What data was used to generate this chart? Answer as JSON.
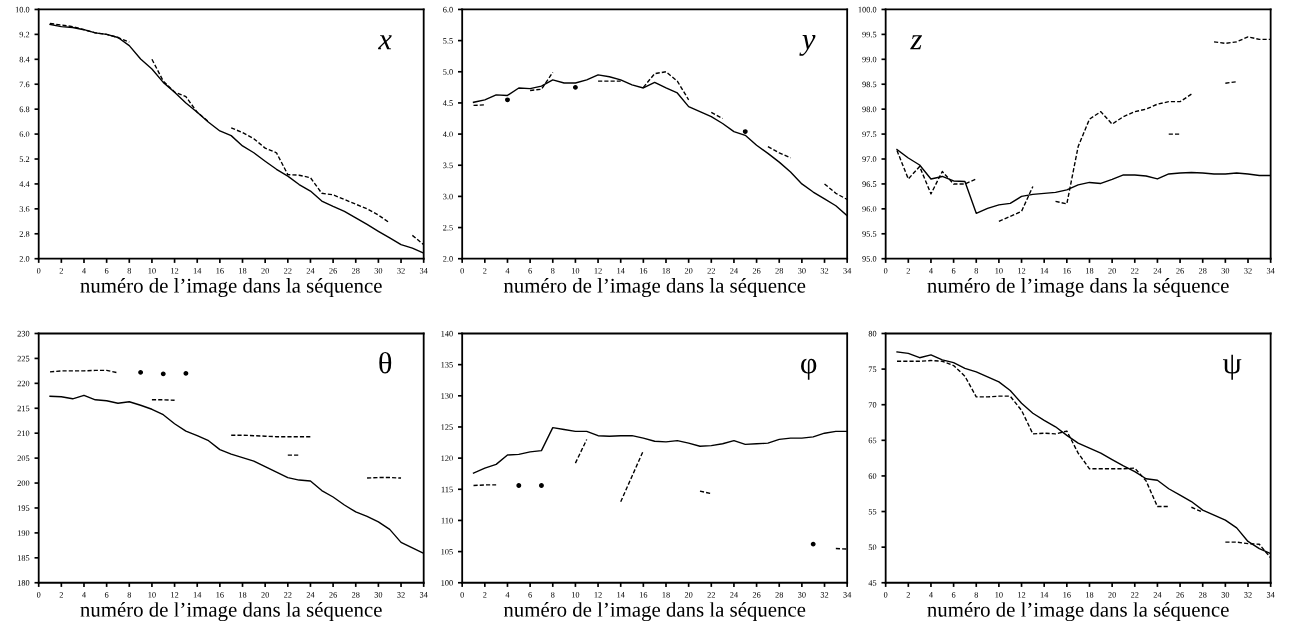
{
  "chart_data": [
    {
      "type": "line",
      "xlabel": "numéro de l’image dans la séquence",
      "annotations": [
        "x"
      ],
      "x": [
        1,
        2,
        3,
        4,
        5,
        6,
        7,
        8,
        9,
        10,
        11,
        12,
        13,
        14,
        15,
        16,
        17,
        18,
        19,
        20,
        21,
        22,
        23,
        24,
        25,
        26,
        27,
        28,
        29,
        30,
        31,
        32,
        33,
        34
      ],
      "xlim": [
        0,
        34
      ],
      "xticks": [
        0,
        2,
        4,
        6,
        8,
        10,
        12,
        14,
        16,
        18,
        20,
        22,
        24,
        26,
        28,
        30,
        32,
        34
      ],
      "ylim": [
        2.0,
        10.0
      ],
      "yticks": [
        {
          "value": 2.0,
          "label": "2.0"
        },
        2.8,
        3.6,
        4.4,
        5.2,
        {
          "value": 6.0,
          "label": "6.0"
        },
        6.8,
        7.6,
        8.4,
        9.2,
        {
          "value": 10.0,
          "label": "10.0"
        }
      ],
      "grid": false,
      "series": [
        {
          "color": "#000000",
          "line_style": "solid",
          "values": [
            9.52,
            9.45,
            9.42,
            9.35,
            9.25,
            9.2,
            9.1,
            8.84,
            8.41,
            8.09,
            7.66,
            7.34,
            7.0,
            6.7,
            6.38,
            6.1,
            5.95,
            5.62,
            5.4,
            5.13,
            4.87,
            4.65,
            4.38,
            4.17,
            3.85,
            3.68,
            3.52,
            3.31,
            3.1,
            2.88,
            2.67,
            2.45,
            2.34,
            2.18
          ]
        },
        {
          "color": "#000000",
          "line_style": "dashed",
          "values": [
            9.55,
            9.5,
            9.45,
            9.35,
            9.25,
            9.2,
            9.1,
            8.95,
            null,
            8.4,
            7.7,
            7.35,
            7.2,
            6.7,
            6.4,
            null,
            6.2,
            6.05,
            5.85,
            5.55,
            5.4,
            4.7,
            4.68,
            4.6,
            4.1,
            4.05,
            3.9,
            3.75,
            3.6,
            3.4,
            3.15,
            null,
            2.75,
            2.45
          ]
        }
      ]
    },
    {
      "type": "line",
      "xlabel": "numéro de l’image dans la séquence",
      "annotations": [
        "y"
      ],
      "x": [
        1,
        2,
        3,
        4,
        5,
        6,
        7,
        8,
        9,
        10,
        11,
        12,
        13,
        14,
        15,
        16,
        17,
        18,
        19,
        20,
        21,
        22,
        23,
        24,
        25,
        26,
        27,
        28,
        29,
        30,
        31,
        32,
        33,
        34
      ],
      "xlim": [
        0,
        34
      ],
      "xticks": [
        0,
        2,
        4,
        6,
        8,
        10,
        12,
        14,
        16,
        18,
        20,
        22,
        24,
        26,
        28,
        30,
        32,
        34
      ],
      "ylim": [
        2.0,
        6.0
      ],
      "yticks": [
        {
          "value": 2.0,
          "label": "2.0"
        },
        2.5,
        {
          "value": 3.0,
          "label": "3.0"
        },
        3.5,
        {
          "value": 4.0,
          "label": "4.0"
        },
        4.5,
        {
          "value": 5.0,
          "label": "5.0"
        },
        5.5,
        {
          "value": 6.0,
          "label": "6.0"
        }
      ],
      "grid": false,
      "series": [
        {
          "color": "#000000",
          "line_style": "solid",
          "values": [
            4.51,
            4.55,
            4.63,
            4.62,
            4.74,
            4.73,
            4.77,
            4.87,
            4.82,
            4.82,
            4.87,
            4.95,
            4.92,
            4.87,
            4.79,
            4.74,
            4.83,
            4.74,
            4.66,
            4.44,
            4.36,
            4.28,
            4.17,
            4.04,
            3.98,
            3.82,
            3.69,
            3.55,
            3.39,
            3.2,
            3.07,
            2.96,
            2.85,
            2.69
          ]
        },
        {
          "color": "#000000",
          "line_style": "dashed",
          "values": [
            4.46,
            4.47,
            null,
            4.55,
            null,
            4.7,
            4.72,
            4.99,
            null,
            4.75,
            null,
            4.85,
            4.85,
            4.85,
            null,
            4.75,
            4.97,
            5.0,
            4.85,
            4.55,
            null,
            4.35,
            4.25,
            null,
            4.04,
            null,
            3.8,
            3.7,
            3.62,
            null,
            null,
            3.2,
            3.05,
            2.95
          ]
        }
      ]
    },
    {
      "type": "line",
      "xlabel": "numéro de l’image dans la séquence",
      "annotations": [
        "z"
      ],
      "x": [
        1,
        2,
        3,
        4,
        5,
        6,
        7,
        8,
        9,
        10,
        11,
        12,
        13,
        14,
        15,
        16,
        17,
        18,
        19,
        20,
        21,
        22,
        23,
        24,
        25,
        26,
        27,
        28,
        29,
        30,
        31,
        32,
        33,
        34
      ],
      "xlim": [
        0,
        34
      ],
      "xticks": [
        0,
        2,
        4,
        6,
        8,
        10,
        12,
        14,
        16,
        18,
        20,
        22,
        24,
        26,
        28,
        30,
        32,
        34
      ],
      "ylim": [
        95.0,
        100.0
      ],
      "yticks": [
        {
          "value": 95.0,
          "label": "95.0"
        },
        95.5,
        {
          "value": 96.0,
          "label": "96.0"
        },
        96.5,
        {
          "value": 97.0,
          "label": "97.0"
        },
        97.5,
        {
          "value": 98.0,
          "label": "98.0"
        },
        98.5,
        {
          "value": 99.0,
          "label": "99.0"
        },
        99.5,
        {
          "value": 100.0,
          "label": "100.0"
        }
      ],
      "grid": false,
      "series": [
        {
          "color": "#000000",
          "line_style": "solid",
          "values": [
            97.19,
            97.02,
            96.88,
            96.6,
            96.65,
            96.56,
            96.55,
            95.91,
            96.01,
            96.08,
            96.11,
            96.25,
            96.29,
            96.31,
            96.33,
            96.38,
            96.48,
            96.53,
            96.51,
            96.59,
            96.68,
            96.68,
            96.66,
            96.6,
            96.7,
            96.72,
            96.73,
            96.72,
            96.7,
            96.7,
            96.72,
            96.7,
            96.67,
            96.67
          ]
        },
        {
          "color": "#000000",
          "line_style": "dashed",
          "values": [
            97.17,
            96.6,
            96.85,
            96.3,
            96.75,
            96.5,
            96.5,
            96.6,
            null,
            95.75,
            95.85,
            95.95,
            96.45,
            null,
            96.15,
            96.1,
            97.25,
            97.8,
            97.95,
            97.7,
            97.85,
            97.95,
            98.0,
            98.1,
            98.15,
            98.15,
            98.3,
            null,
            null,
            98.52,
            98.55,
            null,
            null,
            null
          ]
        },
        {
          "color": "#000000",
          "line_style": "dashed",
          "values": [
            null,
            null,
            null,
            null,
            null,
            null,
            null,
            null,
            null,
            null,
            null,
            null,
            null,
            null,
            null,
            null,
            null,
            null,
            null,
            null,
            null,
            null,
            null,
            null,
            97.5,
            97.5,
            null,
            null,
            99.35,
            99.32,
            99.35,
            99.45,
            99.4,
            99.4
          ]
        }
      ]
    },
    {
      "type": "line",
      "xlabel": "numéro de l’image dans la séquence",
      "annotations": [
        "θ"
      ],
      "x": [
        1,
        2,
        3,
        4,
        5,
        6,
        7,
        8,
        9,
        10,
        11,
        12,
        13,
        14,
        15,
        16,
        17,
        18,
        19,
        20,
        21,
        22,
        23,
        24,
        25,
        26,
        27,
        28,
        29,
        30,
        31,
        32,
        33,
        34
      ],
      "xlim": [
        0,
        34
      ],
      "xticks": [
        0,
        2,
        4,
        6,
        8,
        10,
        12,
        14,
        16,
        18,
        20,
        22,
        24,
        26,
        28,
        30,
        32,
        34
      ],
      "ylim": [
        180,
        230
      ],
      "yticks": [
        180,
        185,
        190,
        195,
        200,
        205,
        210,
        215,
        220,
        225,
        230
      ],
      "grid": false,
      "series": [
        {
          "color": "#000000",
          "line_style": "solid",
          "values": [
            217.4,
            217.3,
            216.9,
            217.6,
            216.7,
            216.5,
            216.0,
            216.3,
            215.6,
            214.8,
            213.7,
            211.9,
            210.4,
            209.5,
            208.5,
            206.7,
            205.8,
            205.1,
            204.4,
            203.3,
            202.2,
            201.1,
            200.6,
            200.4,
            198.5,
            197.2,
            195.6,
            194.2,
            193.3,
            192.2,
            190.7,
            188.1,
            187.0,
            185.9
          ]
        },
        {
          "color": "#000000",
          "line_style": "dashed",
          "values": [
            222.3,
            222.5,
            222.5,
            222.5,
            222.6,
            222.6,
            222.1,
            null,
            222.2,
            null,
            221.9,
            null,
            222.0,
            null,
            null,
            null,
            209.6,
            209.6,
            209.5,
            209.4,
            209.3,
            209.3,
            209.3,
            209.3,
            null,
            null,
            null,
            null,
            201.0,
            201.1,
            201.1,
            201.0,
            null,
            null
          ]
        },
        {
          "color": "#000000",
          "line_style": "dashed",
          "values": [
            null,
            null,
            null,
            null,
            null,
            null,
            null,
            null,
            null,
            216.7,
            216.7,
            216.6,
            null,
            null,
            null,
            null,
            null,
            null,
            null,
            null,
            null,
            205.6,
            205.6,
            null,
            null,
            null,
            null,
            null,
            null,
            null,
            null,
            null,
            null,
            null
          ]
        }
      ]
    },
    {
      "type": "line",
      "xlabel": "numéro de l’image dans la séquence",
      "annotations": [
        "φ"
      ],
      "x": [
        1,
        2,
        3,
        4,
        5,
        6,
        7,
        8,
        9,
        10,
        11,
        12,
        13,
        14,
        15,
        16,
        17,
        18,
        19,
        20,
        21,
        22,
        23,
        24,
        25,
        26,
        27,
        28,
        29,
        30,
        31,
        32,
        33,
        34
      ],
      "xlim": [
        0,
        34
      ],
      "xticks": [
        0,
        2,
        4,
        6,
        8,
        10,
        12,
        14,
        16,
        18,
        20,
        22,
        24,
        26,
        28,
        30,
        32,
        34
      ],
      "ylim": [
        100,
        140
      ],
      "yticks": [
        100,
        105,
        110,
        115,
        120,
        125,
        130,
        135,
        140
      ],
      "grid": false,
      "series": [
        {
          "color": "#000000",
          "line_style": "solid",
          "values": [
            117.6,
            118.4,
            119.0,
            120.5,
            120.6,
            121.0,
            121.2,
            124.9,
            124.6,
            124.3,
            124.3,
            123.6,
            123.5,
            123.6,
            123.6,
            123.2,
            122.7,
            122.6,
            122.8,
            122.4,
            121.9,
            122.0,
            122.3,
            122.8,
            122.2,
            122.3,
            122.4,
            123.0,
            123.2,
            123.2,
            123.4,
            124.0,
            124.3,
            124.3
          ]
        },
        {
          "color": "#000000",
          "line_style": "dashed",
          "values": [
            115.6,
            115.7,
            115.7,
            null,
            115.6,
            null,
            115.6,
            null,
            null,
            119.2,
            123.0,
            null,
            null,
            113.0,
            117.1,
            121.2,
            null,
            null,
            null,
            null,
            114.7,
            114.3,
            null,
            null,
            null,
            null,
            null,
            null,
            null,
            null,
            106.2,
            null,
            105.5,
            105.4
          ]
        }
      ]
    },
    {
      "type": "line",
      "xlabel": "numéro de l’image dans la séquence",
      "annotations": [
        "ψ"
      ],
      "x": [
        1,
        2,
        3,
        4,
        5,
        6,
        7,
        8,
        9,
        10,
        11,
        12,
        13,
        14,
        15,
        16,
        17,
        18,
        19,
        20,
        21,
        22,
        23,
        24,
        25,
        26,
        27,
        28,
        29,
        30,
        31,
        32,
        33,
        34
      ],
      "xlim": [
        0,
        34
      ],
      "xticks": [
        0,
        2,
        4,
        6,
        8,
        10,
        12,
        14,
        16,
        18,
        20,
        22,
        24,
        26,
        28,
        30,
        32,
        34
      ],
      "ylim": [
        45,
        80
      ],
      "yticks": [
        45,
        50,
        55,
        60,
        65,
        70,
        75,
        80
      ],
      "grid": false,
      "series": [
        {
          "color": "#000000",
          "line_style": "solid",
          "values": [
            77.4,
            77.2,
            76.6,
            77.0,
            76.3,
            75.9,
            75.1,
            74.6,
            73.9,
            73.2,
            72.0,
            70.2,
            68.8,
            67.8,
            66.9,
            65.7,
            64.6,
            63.9,
            63.2,
            62.3,
            61.4,
            60.6,
            59.6,
            59.4,
            58.2,
            57.3,
            56.4,
            55.2,
            54.5,
            53.8,
            52.7,
            50.8,
            49.8,
            49.1
          ]
        },
        {
          "color": "#000000",
          "line_style": "dashed",
          "values": [
            76.1,
            76.1,
            76.1,
            76.2,
            76.1,
            75.5,
            74.0,
            71.1,
            71.1,
            71.2,
            71.2,
            69.2,
            65.9,
            66.0,
            65.9,
            66.3,
            63.2,
            61.0,
            61.0,
            61.0,
            61.0,
            61.1,
            59.3,
            55.7,
            55.7,
            null,
            55.6,
            54.9,
            null,
            50.7,
            50.7,
            50.5,
            50.4,
            48.5
          ]
        }
      ]
    }
  ]
}
